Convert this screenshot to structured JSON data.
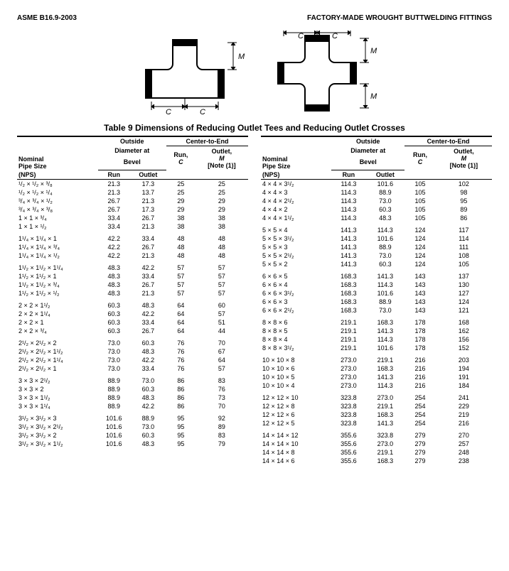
{
  "header_left": "ASME B16.9-2003",
  "header_right": "FACTORY-MADE WROUGHT BUTTWELDING FITTINGS",
  "caption": "Table 9   Dimensions of Reducing Outlet Tees and Reducing Outlet Crosses",
  "cols": {
    "nominal_l1": "Nominal",
    "nominal_l2": "Pipe Size",
    "nominal_l3": "(NPS)",
    "od_top": "Outside",
    "od_mid": "Diameter at",
    "od_bot": "Bevel",
    "od_run": "Run",
    "od_outlet": "Outlet",
    "cte_top": "Center-to-End",
    "run_l1": "Run,",
    "run_l2": "C",
    "outlet_l1": "Outlet,",
    "outlet_l2": "M",
    "outlet_l3": "[Note (1)]"
  },
  "diag_labels": {
    "C": "C",
    "M": "M"
  },
  "left": [
    [
      {
        "n": "¹/₂ × ¹/₂ × ³/₈",
        "r": "21.3",
        "o": "17.3",
        "c": "25",
        "m": "25"
      },
      {
        "n": "¹/₂ × ¹/₂ × ¹/₄",
        "r": "21.3",
        "o": "13.7",
        "c": "25",
        "m": "25"
      },
      {
        "n": "³/₄ × ³/₄ × ¹/₂",
        "r": "26.7",
        "o": "21.3",
        "c": "29",
        "m": "29"
      },
      {
        "n": "³/₄ × ³/₄ × ³/₈",
        "r": "26.7",
        "o": "17.3",
        "c": "29",
        "m": "29"
      },
      {
        "n": "1 × 1 × ³/₄",
        "r": "33.4",
        "o": "26.7",
        "c": "38",
        "m": "38"
      },
      {
        "n": "1 × 1 × ¹/₂",
        "r": "33.4",
        "o": "21.3",
        "c": "38",
        "m": "38"
      }
    ],
    [
      {
        "n": "1¹/₄ × 1¹/₄ × 1",
        "r": "42.2",
        "o": "33.4",
        "c": "48",
        "m": "48"
      },
      {
        "n": "1¹/₄ × 1¹/₄ × ³/₄",
        "r": "42.2",
        "o": "26.7",
        "c": "48",
        "m": "48"
      },
      {
        "n": "1¹/₄ × 1¹/₄ × ¹/₂",
        "r": "42.2",
        "o": "21.3",
        "c": "48",
        "m": "48"
      }
    ],
    [
      {
        "n": "1¹/₂ × 1¹/₂ × 1¹/₄",
        "r": "48.3",
        "o": "42.2",
        "c": "57",
        "m": "57"
      },
      {
        "n": "1¹/₂ × 1¹/₂ × 1",
        "r": "48.3",
        "o": "33.4",
        "c": "57",
        "m": "57"
      },
      {
        "n": "1¹/₂ × 1¹/₂ × ³/₄",
        "r": "48.3",
        "o": "26.7",
        "c": "57",
        "m": "57"
      },
      {
        "n": "1¹/₂ × 1¹/₂ × ¹/₂",
        "r": "48.3",
        "o": "21.3",
        "c": "57",
        "m": "57"
      }
    ],
    [
      {
        "n": "2 × 2 × 1¹/₂",
        "r": "60.3",
        "o": "48.3",
        "c": "64",
        "m": "60"
      },
      {
        "n": "2 × 2 × 1¹/₄",
        "r": "60.3",
        "o": "42.2",
        "c": "64",
        "m": "57"
      },
      {
        "n": "2 × 2 × 1",
        "r": "60.3",
        "o": "33.4",
        "c": "64",
        "m": "51"
      },
      {
        "n": "2 × 2 × ³/₄",
        "r": "60.3",
        "o": "26.7",
        "c": "64",
        "m": "44"
      }
    ],
    [
      {
        "n": "2¹/₂ × 2¹/₂ × 2",
        "r": "73.0",
        "o": "60.3",
        "c": "76",
        "m": "70"
      },
      {
        "n": "2¹/₂ × 2¹/₂ × 1¹/₂",
        "r": "73.0",
        "o": "48.3",
        "c": "76",
        "m": "67"
      },
      {
        "n": "2¹/₂ × 2¹/₂ × 1¹/₄",
        "r": "73.0",
        "o": "42.2",
        "c": "76",
        "m": "64"
      },
      {
        "n": "2¹/₂ × 2¹/₂ × 1",
        "r": "73.0",
        "o": "33.4",
        "c": "76",
        "m": "57"
      }
    ],
    [
      {
        "n": "3 × 3 × 2¹/₂",
        "r": "88.9",
        "o": "73.0",
        "c": "86",
        "m": "83"
      },
      {
        "n": "3 × 3 × 2",
        "r": "88.9",
        "o": "60.3",
        "c": "86",
        "m": "76"
      },
      {
        "n": "3 × 3 × 1¹/₂",
        "r": "88.9",
        "o": "48.3",
        "c": "86",
        "m": "73"
      },
      {
        "n": "3 × 3 × 1¹/₄",
        "r": "88.9",
        "o": "42.2",
        "c": "86",
        "m": "70"
      }
    ],
    [
      {
        "n": "3¹/₂ × 3¹/₂ × 3",
        "r": "101.6",
        "o": "88.9",
        "c": "95",
        "m": "92"
      },
      {
        "n": "3¹/₂ × 3¹/₂ × 2¹/₂",
        "r": "101.6",
        "o": "73.0",
        "c": "95",
        "m": "89"
      },
      {
        "n": "3¹/₂ × 3¹/₂ × 2",
        "r": "101.6",
        "o": "60.3",
        "c": "95",
        "m": "83"
      },
      {
        "n": "3¹/₂ × 3¹/₂ × 1¹/₂",
        "r": "101.6",
        "o": "48.3",
        "c": "95",
        "m": "79"
      }
    ]
  ],
  "right": [
    [
      {
        "n": "4 × 4 × 3¹/₂",
        "r": "114.3",
        "o": "101.6",
        "c": "105",
        "m": "102"
      },
      {
        "n": "4 × 4 × 3",
        "r": "114.3",
        "o": "88.9",
        "c": "105",
        "m": "98"
      },
      {
        "n": "4 × 4 × 2¹/₂",
        "r": "114.3",
        "o": "73.0",
        "c": "105",
        "m": "95"
      },
      {
        "n": "4 × 4 × 2",
        "r": "114.3",
        "o": "60.3",
        "c": "105",
        "m": "89"
      },
      {
        "n": "4 × 4 × 1¹/₂",
        "r": "114.3",
        "o": "48.3",
        "c": "105",
        "m": "86"
      }
    ],
    [
      {
        "n": "5 × 5 × 4",
        "r": "141.3",
        "o": "114.3",
        "c": "124",
        "m": "117"
      },
      {
        "n": "5 × 5 × 3¹/₂",
        "r": "141.3",
        "o": "101.6",
        "c": "124",
        "m": "114"
      },
      {
        "n": "5 × 5 × 3",
        "r": "141.3",
        "o": "88.9",
        "c": "124",
        "m": "111"
      },
      {
        "n": "5 × 5 × 2¹/₂",
        "r": "141.3",
        "o": "73.0",
        "c": "124",
        "m": "108"
      },
      {
        "n": "5 × 5 × 2",
        "r": "141.3",
        "o": "60.3",
        "c": "124",
        "m": "105"
      }
    ],
    [
      {
        "n": "6 × 6 × 5",
        "r": "168.3",
        "o": "141.3",
        "c": "143",
        "m": "137"
      },
      {
        "n": "6 × 6 × 4",
        "r": "168.3",
        "o": "114.3",
        "c": "143",
        "m": "130"
      },
      {
        "n": "6 × 6 × 3¹/₂",
        "r": "168.3",
        "o": "101.6",
        "c": "143",
        "m": "127"
      },
      {
        "n": "6 × 6 × 3",
        "r": "168.3",
        "o": "88.9",
        "c": "143",
        "m": "124"
      },
      {
        "n": "6 × 6 × 2¹/₂",
        "r": "168.3",
        "o": "73.0",
        "c": "143",
        "m": "121"
      }
    ],
    [
      {
        "n": "8 × 8 × 6",
        "r": "219.1",
        "o": "168.3",
        "c": "178",
        "m": "168"
      },
      {
        "n": "8 × 8 × 5",
        "r": "219.1",
        "o": "141.3",
        "c": "178",
        "m": "162"
      },
      {
        "n": "8 × 8 × 4",
        "r": "219.1",
        "o": "114.3",
        "c": "178",
        "m": "156"
      },
      {
        "n": "8 × 8 × 3¹/₂",
        "r": "219.1",
        "o": "101.6",
        "c": "178",
        "m": "152"
      }
    ],
    [
      {
        "n": "10 × 10 × 8",
        "r": "273.0",
        "o": "219.1",
        "c": "216",
        "m": "203"
      },
      {
        "n": "10 × 10 × 6",
        "r": "273.0",
        "o": "168.3",
        "c": "216",
        "m": "194"
      },
      {
        "n": "10 × 10 × 5",
        "r": "273.0",
        "o": "141.3",
        "c": "216",
        "m": "191"
      },
      {
        "n": "10 × 10 × 4",
        "r": "273.0",
        "o": "114.3",
        "c": "216",
        "m": "184"
      }
    ],
    [
      {
        "n": "12 × 12 × 10",
        "r": "323.8",
        "o": "273.0",
        "c": "254",
        "m": "241"
      },
      {
        "n": "12 × 12 × 8",
        "r": "323.8",
        "o": "219.1",
        "c": "254",
        "m": "229"
      },
      {
        "n": "12 × 12 × 6",
        "r": "323.8",
        "o": "168.3",
        "c": "254",
        "m": "219"
      },
      {
        "n": "12 × 12 × 5",
        "r": "323.8",
        "o": "141.3",
        "c": "254",
        "m": "216"
      }
    ],
    [
      {
        "n": "14 × 14 × 12",
        "r": "355.6",
        "o": "323.8",
        "c": "279",
        "m": "270"
      },
      {
        "n": "14 × 14 × 10",
        "r": "355.6",
        "o": "273.0",
        "c": "279",
        "m": "257"
      },
      {
        "n": "14 × 14 × 8",
        "r": "355.6",
        "o": "219.1",
        "c": "279",
        "m": "248"
      },
      {
        "n": "14 × 14 × 6",
        "r": "355.6",
        "o": "168.3",
        "c": "279",
        "m": "238"
      }
    ]
  ]
}
